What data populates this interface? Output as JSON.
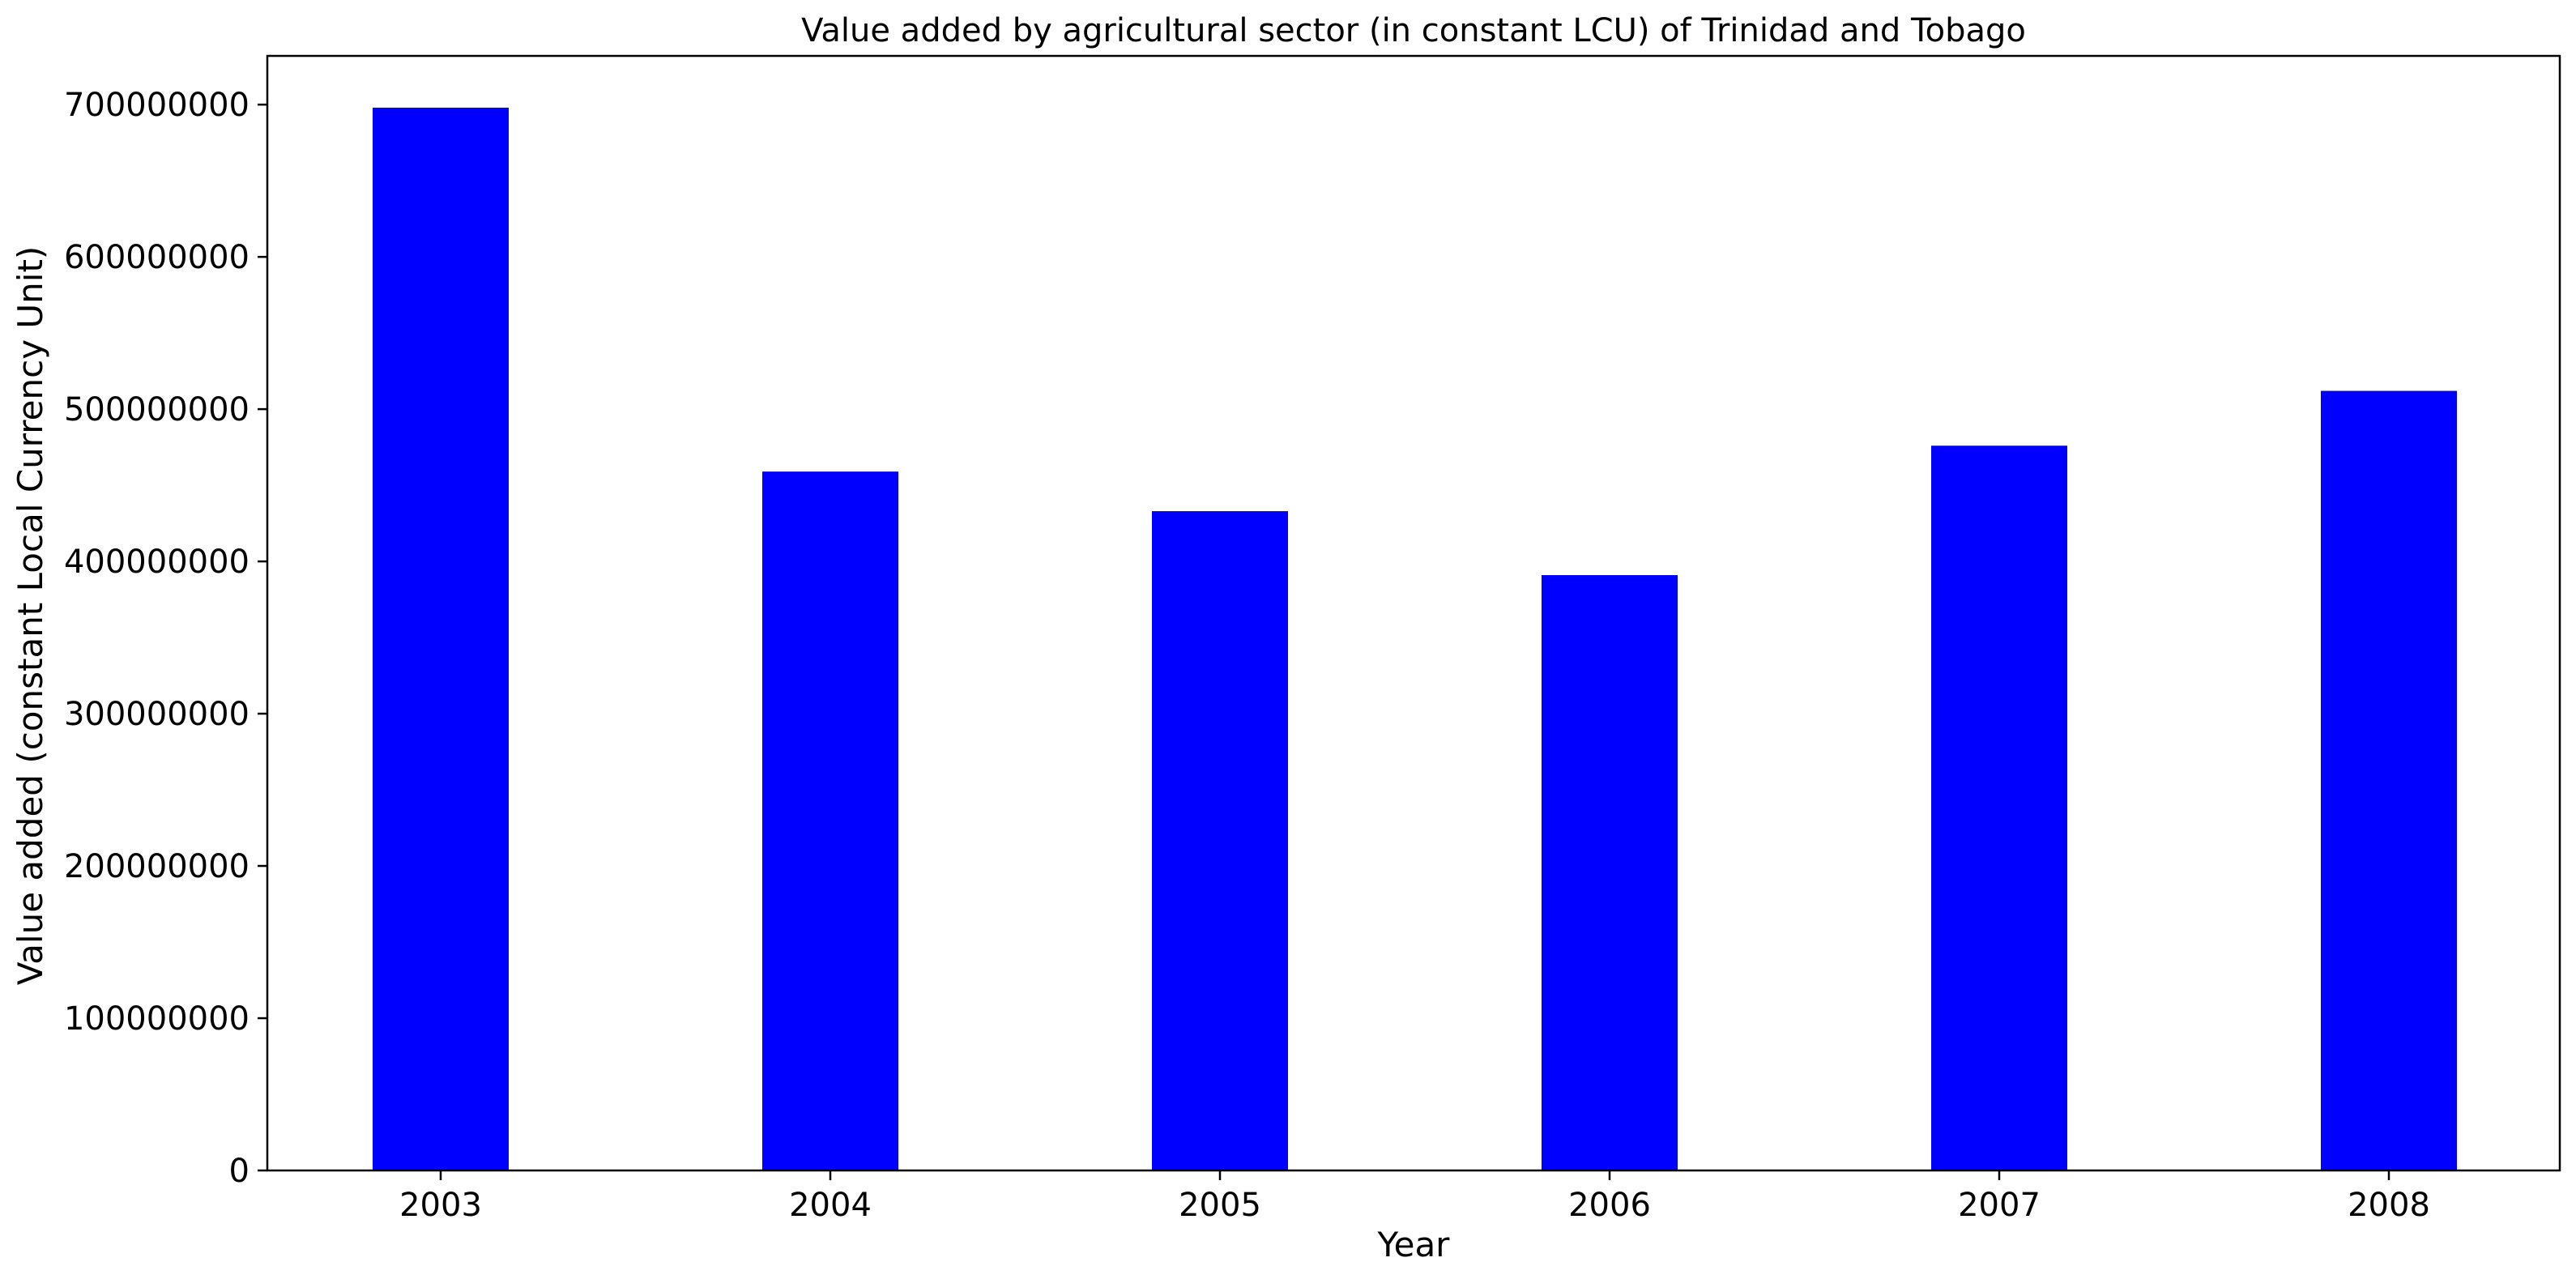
{
  "chart_data": {
    "type": "bar",
    "title": "Value added by agricultural sector (in constant LCU) of Trinidad and Tobago",
    "xlabel": "Year",
    "ylabel": "Value added (constant Local Currency Unit)",
    "categories": [
      "2003",
      "2004",
      "2005",
      "2006",
      "2007",
      "2008"
    ],
    "values": [
      698000000,
      459000000,
      433000000,
      391000000,
      476000000,
      512000000
    ],
    "ylim": [
      0,
      732000000
    ],
    "yticks": [
      0,
      100000000,
      200000000,
      300000000,
      400000000,
      500000000,
      600000000,
      700000000
    ],
    "ytick_labels": [
      "0",
      "100000000",
      "200000000",
      "300000000",
      "400000000",
      "500000000",
      "600000000",
      "700000000"
    ],
    "grid": false,
    "legend": "none",
    "bar_color": "#0000ff"
  }
}
